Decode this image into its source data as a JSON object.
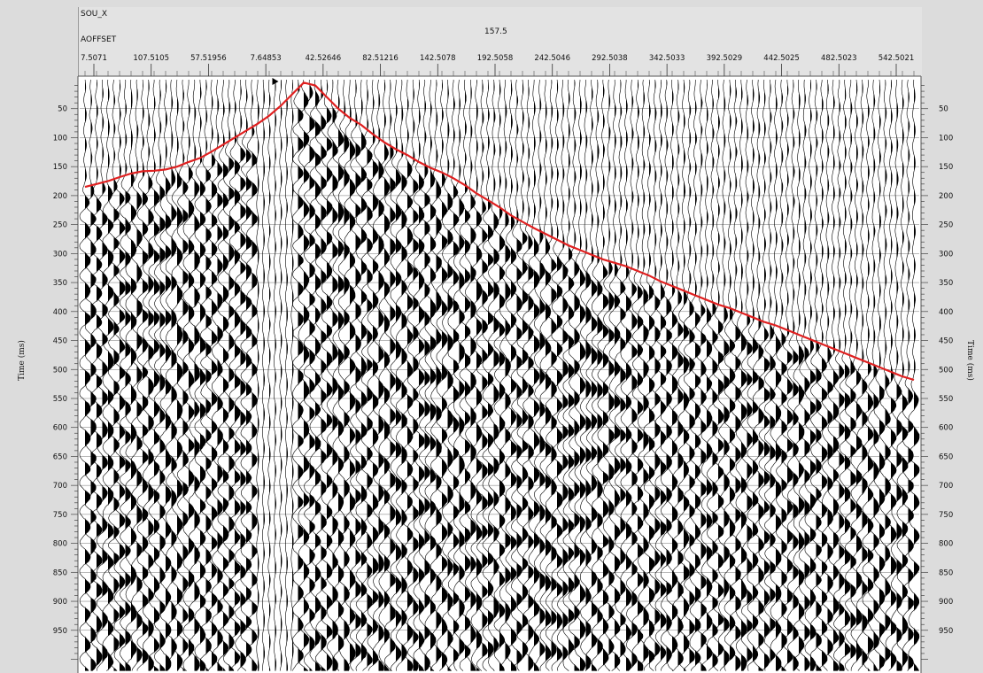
{
  "header": {
    "sou_label": "SOU_X",
    "sou_value": "157.5",
    "offset_label": "AOFFSET"
  },
  "chart_data": {
    "type": "seismic-wiggle",
    "title": "",
    "x_header_label": "AOFFSET",
    "x_tick_labels": [
      "7.5071",
      "107.5105",
      "57.51956",
      "7.64853",
      "42.52646",
      "82.51216",
      "142.5078",
      "192.5058",
      "242.5046",
      "292.5038",
      "342.5033",
      "392.5029",
      "442.5025",
      "482.5023",
      "542.5021"
    ],
    "ylabel_left": "Time (ms)",
    "ylabel_right": "Time (ms)",
    "y_ticks": [
      50,
      100,
      150,
      200,
      250,
      300,
      350,
      400,
      450,
      500,
      550,
      600,
      650,
      700,
      750,
      800,
      850,
      900,
      950
    ],
    "ylim": [
      0,
      1000
    ],
    "inverted_y": true,
    "grid": true,
    "series": [
      {
        "kind": "first-break-pick",
        "color": "#e02020",
        "x_trace": [
          0,
          2,
          4,
          6,
          8,
          10,
          12,
          14,
          16,
          18,
          20,
          22,
          24,
          26,
          28,
          30,
          32,
          34,
          36,
          38,
          40,
          42,
          44,
          46,
          48,
          50,
          52,
          54,
          56,
          58,
          60,
          62,
          64,
          66,
          68,
          70,
          72,
          74,
          76,
          78,
          80,
          82,
          84,
          86,
          88,
          90,
          92,
          94,
          96,
          98,
          100,
          102,
          104,
          106,
          108,
          110,
          112,
          114,
          116,
          118,
          120,
          122,
          124,
          126,
          128,
          130,
          132,
          134,
          136,
          138,
          140,
          142,
          144
        ],
        "t_ms": [
          185,
          180,
          175,
          168,
          162,
          158,
          157,
          155,
          150,
          142,
          135,
          124,
          112,
          100,
          88,
          76,
          62,
          45,
          25,
          5,
          10,
          30,
          50,
          66,
          78,
          94,
          108,
          120,
          130,
          142,
          152,
          160,
          170,
          182,
          196,
          208,
          220,
          234,
          245,
          256,
          266,
          276,
          286,
          294,
          302,
          310,
          316,
          322,
          330,
          338,
          348,
          356,
          364,
          372,
          380,
          388,
          394,
          402,
          410,
          418,
          424,
          432,
          440,
          448,
          456,
          464,
          472,
          480,
          488,
          496,
          504,
          512,
          518
        ]
      }
    ],
    "trace_count": 145,
    "source_trace_index": 33
  }
}
